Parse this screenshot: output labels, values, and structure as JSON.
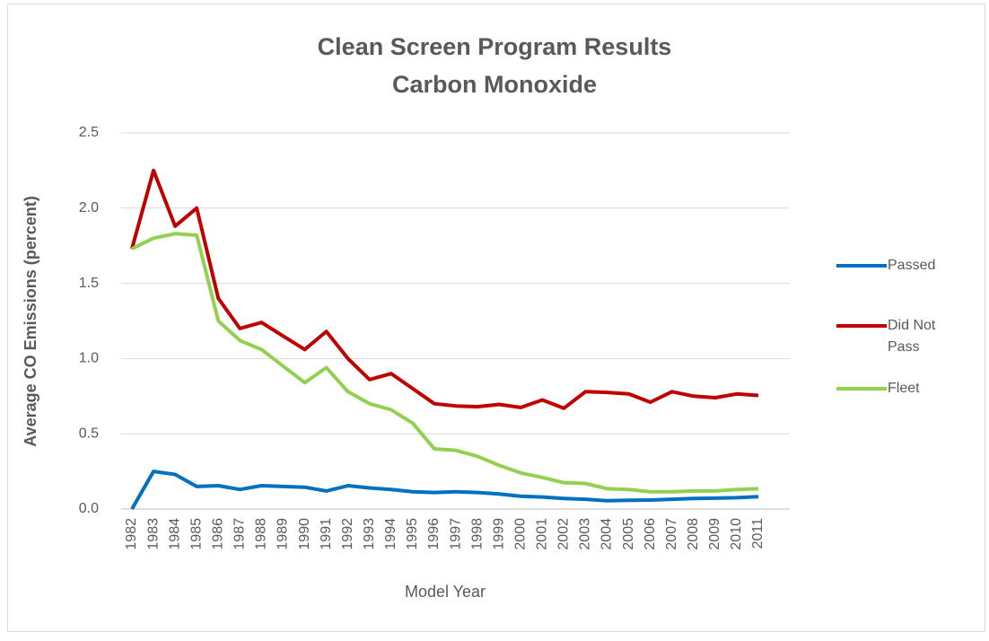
{
  "chart_data": {
    "type": "line",
    "title": "Clean Screen Program Results",
    "subtitle": "Carbon Monoxide",
    "x_label": "Model Year",
    "y_label": "Average CO Emissions (percent)",
    "categories": [
      "1982",
      "1983",
      "1984",
      "1985",
      "1986",
      "1987",
      "1988",
      "1989",
      "1990",
      "1991",
      "1992",
      "1993",
      "1994",
      "1995",
      "1996",
      "1997",
      "1998",
      "1999",
      "2000",
      "2001",
      "2002",
      "2003",
      "2004",
      "2005",
      "2006",
      "2007",
      "2008",
      "2009",
      "2010",
      "2011"
    ],
    "series": [
      {
        "name": "Passed",
        "color": "#0070c0",
        "values": [
          0.0,
          0.25,
          0.23,
          0.15,
          0.155,
          0.13,
          0.155,
          0.15,
          0.145,
          0.12,
          0.155,
          0.14,
          0.13,
          0.115,
          0.11,
          0.115,
          0.11,
          0.1,
          0.085,
          0.08,
          0.07,
          0.065,
          0.055,
          0.058,
          0.06,
          0.065,
          0.07,
          0.072,
          0.075,
          0.082
        ]
      },
      {
        "name": "Did Not Pass",
        "color": "#c00000",
        "values": [
          1.73,
          2.25,
          1.88,
          2.0,
          1.4,
          1.2,
          1.24,
          1.15,
          1.06,
          1.18,
          1.0,
          0.86,
          0.9,
          0.8,
          0.7,
          0.685,
          0.68,
          0.695,
          0.675,
          0.725,
          0.67,
          0.78,
          0.775,
          0.765,
          0.71,
          0.78,
          0.75,
          0.74,
          0.765,
          0.755
        ]
      },
      {
        "name": "Fleet",
        "color": "#92d050",
        "values": [
          1.73,
          1.8,
          1.83,
          1.82,
          1.25,
          1.12,
          1.06,
          0.95,
          0.84,
          0.94,
          0.78,
          0.7,
          0.66,
          0.57,
          0.4,
          0.39,
          0.35,
          0.29,
          0.24,
          0.21,
          0.175,
          0.17,
          0.135,
          0.13,
          0.115,
          0.115,
          0.12,
          0.12,
          0.13,
          0.135
        ]
      }
    ],
    "ylim": [
      0,
      2.5
    ],
    "yticks": [
      {
        "value": 0,
        "label": "0.0"
      },
      0.5,
      {
        "value": 1,
        "label": "1.0"
      },
      1.5,
      {
        "value": 2,
        "label": "2.0"
      },
      2.5
    ],
    "grid": true,
    "legend": "right"
  }
}
